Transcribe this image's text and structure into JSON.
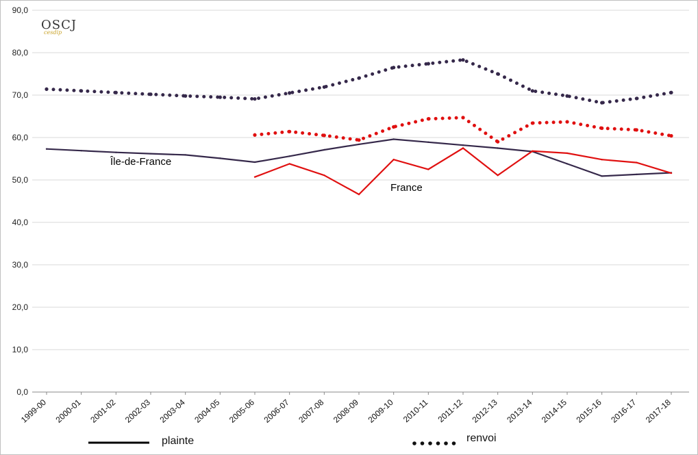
{
  "logo": {
    "main": "OSCJ",
    "sub": "cesdip"
  },
  "colors": {
    "ile_de_france": "#35284a",
    "france": "#e01010",
    "grid": "#d9d9d9",
    "axis": "#888888"
  },
  "legend": {
    "plainte": "plainte",
    "renvoi": "renvoi"
  },
  "chart_data": {
    "type": "line",
    "x": [
      "1999-00",
      "2000-01",
      "2001-02",
      "2002-03",
      "2003-04",
      "2004-05",
      "2005-06",
      "2006-07",
      "2007-08",
      "2008-09",
      "2009-10",
      "2010-11",
      "2011-12",
      "2012-13",
      "2013-14",
      "2014-15",
      "2015-16",
      "2016-17",
      "2017-18"
    ],
    "ylim": [
      0,
      90
    ],
    "yticks": [
      "0,0",
      "10,0",
      "20,0",
      "30,0",
      "40,0",
      "50,0",
      "60,0",
      "70,0",
      "80,0",
      "90,0"
    ],
    "grid": true,
    "series_labels": {
      "ile_de_france": "Île-de-France",
      "france": "France"
    },
    "series": [
      {
        "key": "idf_plainte",
        "group": "ile_de_france",
        "style": "solid",
        "values": [
          57.3,
          56.9,
          56.5,
          56.2,
          55.9,
          55.1,
          54.2,
          55.6,
          57.1,
          58.4,
          59.6,
          58.9,
          58.2,
          57.5,
          56.7,
          53.8,
          50.9,
          51.3,
          51.7
        ]
      },
      {
        "key": "idf_renvoi",
        "group": "ile_de_france",
        "style": "dotted",
        "values": [
          71.4,
          71.0,
          70.6,
          70.2,
          69.8,
          69.5,
          69.1,
          70.5,
          71.9,
          74.0,
          76.5,
          77.4,
          78.3,
          75.0,
          71.0,
          69.8,
          68.2,
          69.2,
          70.6
        ]
      },
      {
        "key": "fr_plainte",
        "group": "france",
        "style": "solid",
        "values": [
          null,
          null,
          null,
          null,
          null,
          null,
          50.7,
          53.8,
          51.1,
          46.6,
          54.8,
          52.5,
          57.5,
          51.1,
          56.8,
          56.3,
          54.8,
          54.1,
          51.6
        ]
      },
      {
        "key": "fr_renvoi",
        "group": "france",
        "style": "dotted",
        "values": [
          null,
          null,
          null,
          null,
          null,
          null,
          60.6,
          61.4,
          60.5,
          59.4,
          62.5,
          64.4,
          64.7,
          59.0,
          63.4,
          63.7,
          62.2,
          61.8,
          60.4
        ]
      }
    ]
  }
}
